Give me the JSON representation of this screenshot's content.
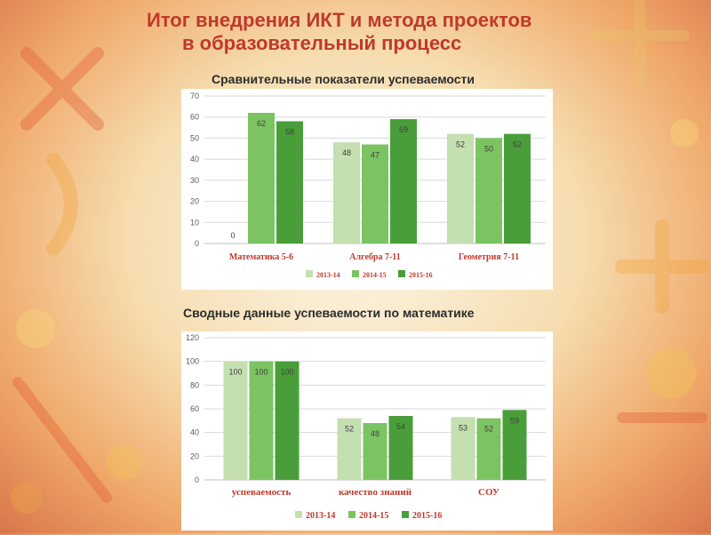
{
  "slide": {
    "title_line1": "Итог  внедрения  ИКТ и метода проектов",
    "title_line2": "в образовательный процесс",
    "subtitle1": "Сравнительные показатели успеваемости",
    "subtitle2": "Сводные данные успеваемости по математике"
  },
  "colors": {
    "title": "#c0392b",
    "series": [
      "#c4dfb0",
      "#7cc462",
      "#4a9e3a"
    ],
    "axis_labels": "#c0392b"
  },
  "chart_data": [
    {
      "type": "bar",
      "categories": [
        "Математика 5-6",
        "Алгебра 7-11",
        "Геометрия 7-11"
      ],
      "series": [
        {
          "name": "2013-14",
          "values": [
            0,
            48,
            52
          ]
        },
        {
          "name": "2014-15",
          "values": [
            62,
            47,
            50
          ]
        },
        {
          "name": "2015-16",
          "values": [
            58,
            59,
            52
          ]
        }
      ],
      "ylim": [
        0,
        70
      ],
      "yticks": [
        0,
        10,
        20,
        30,
        40,
        50,
        60,
        70
      ],
      "grid": true,
      "legend": "bottom"
    },
    {
      "type": "bar",
      "categories": [
        "успеваемость",
        "качество знаний",
        "СОУ"
      ],
      "series": [
        {
          "name": "2013-14",
          "values": [
            100,
            52,
            53
          ]
        },
        {
          "name": "2014-15",
          "values": [
            100,
            48,
            52
          ]
        },
        {
          "name": "2015-16",
          "values": [
            100,
            54,
            59
          ]
        }
      ],
      "ylim": [
        0,
        120
      ],
      "yticks": [
        0,
        20,
        40,
        60,
        80,
        100,
        120
      ],
      "grid": true,
      "legend": "bottom"
    }
  ]
}
